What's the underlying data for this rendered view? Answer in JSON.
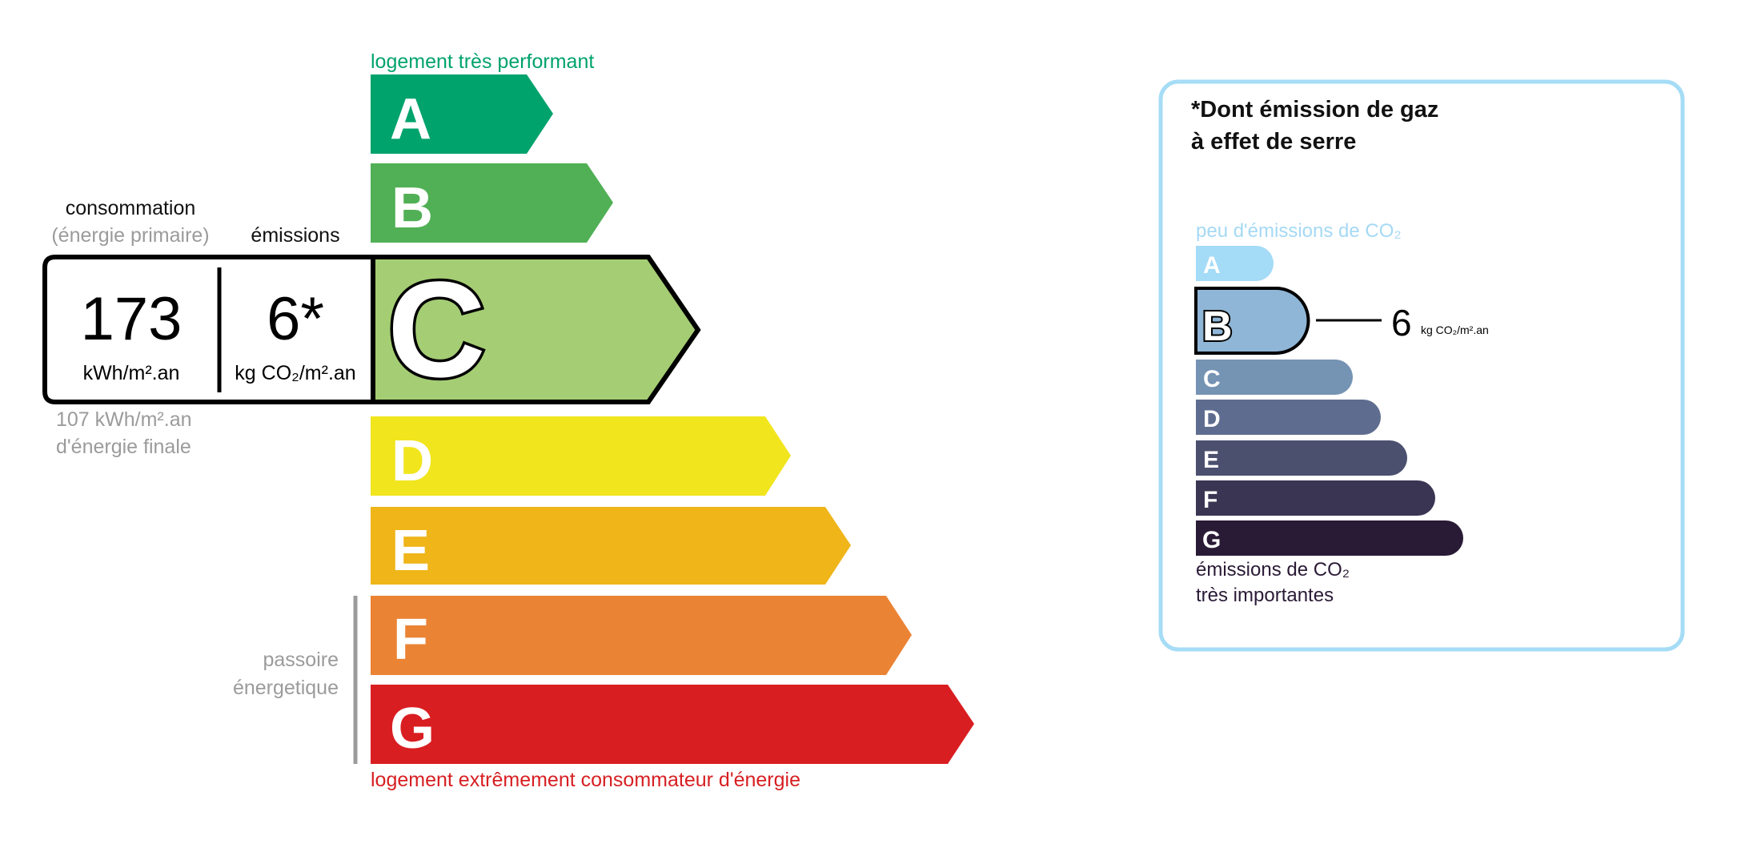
{
  "energy": {
    "top_label": "logement très performant",
    "bottom_label": "logement extrêmement consommateur d'énergie",
    "classes": [
      {
        "letter": "A",
        "color": "#00a36c"
      },
      {
        "letter": "B",
        "color": "#51b055"
      },
      {
        "letter": "C",
        "color": "#a5cd74"
      },
      {
        "letter": "D",
        "color": "#f1e51e"
      },
      {
        "letter": "E",
        "color": "#efb519"
      },
      {
        "letter": "F",
        "color": "#eb8334"
      },
      {
        "letter": "G",
        "color": "#d91e21"
      }
    ],
    "selected_class": "C",
    "consumption_label": "consommation",
    "consumption_sublabel": "(énergie primaire)",
    "emissions_label": "émissions",
    "consumption_value": "173",
    "consumption_unit": "kWh/m².an",
    "emissions_value": "6*",
    "emissions_unit": "kg CO₂/m².an",
    "final_energy_value": "107 kWh/m².an",
    "final_energy_label": "d'énergie finale",
    "passoire_line1": "passoire",
    "passoire_line2": "énergetique",
    "top_color": "#00a36c",
    "bottom_color": "#d71f22"
  },
  "ges": {
    "title_line1": "*Dont émission de gaz",
    "title_line2": "à effet de serre",
    "top_label": "peu d'émissions de CO₂",
    "bottom_line1": "émissions de CO₂",
    "bottom_line2": "très importantes",
    "classes": [
      {
        "letter": "A",
        "color": "#a4dbf7"
      },
      {
        "letter": "B",
        "color": "#8fb6d6"
      },
      {
        "letter": "C",
        "color": "#7593b3"
      },
      {
        "letter": "D",
        "color": "#5e6d8f"
      },
      {
        "letter": "E",
        "color": "#4c506f"
      },
      {
        "letter": "F",
        "color": "#393553"
      },
      {
        "letter": "G",
        "color": "#291a36"
      }
    ],
    "selected_class": "B",
    "value": "6",
    "unit": "kg CO₂/m².an",
    "border_color": "#a5dcf6"
  }
}
